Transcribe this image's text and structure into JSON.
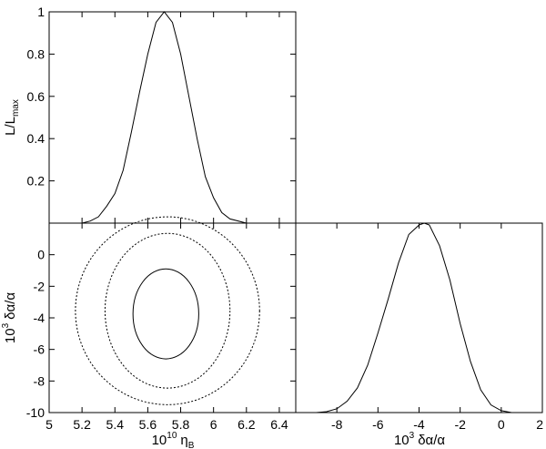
{
  "chart_data": [
    {
      "panel": "top-left",
      "type": "line",
      "title": "",
      "xlabel": "",
      "ylabel": "L/Lmax",
      "ylabel_main": "L/L",
      "ylabel_sub": "max",
      "xlim": [
        5.0,
        6.5
      ],
      "ylim": [
        0.0,
        1.0
      ],
      "yticks": [
        0.2,
        0.4,
        0.6,
        0.8,
        1.0
      ],
      "ytick_labels": [
        "0.2",
        "0.4",
        "0.6",
        "0.8",
        "1"
      ],
      "series": [
        {
          "x": [
            5.0,
            5.1,
            5.2,
            5.25,
            5.3,
            5.35,
            5.4,
            5.45,
            5.5,
            5.55,
            5.6,
            5.65,
            5.7,
            5.75,
            5.8,
            5.85,
            5.9,
            5.95,
            6.0,
            6.05,
            6.1,
            6.2,
            6.3,
            6.5
          ],
          "y": [
            0.0,
            0.0,
            0.0,
            0.01,
            0.03,
            0.08,
            0.14,
            0.25,
            0.43,
            0.62,
            0.8,
            0.95,
            1.0,
            0.95,
            0.8,
            0.6,
            0.4,
            0.22,
            0.12,
            0.05,
            0.02,
            0.0,
            0.0,
            0.0
          ]
        }
      ]
    },
    {
      "panel": "bottom-left",
      "type": "contour",
      "title": "",
      "xlabel": "10^10 ηB",
      "xlabel_prefix": "10",
      "xlabel_prefix_sup": "10",
      "xlabel_main": "η",
      "xlabel_sub": "B",
      "ylabel": "10^3 δα/α",
      "ylabel_prefix": "10",
      "ylabel_prefix_sup": "3",
      "ylabel_main": "δα/α",
      "xlim": [
        5.0,
        6.5
      ],
      "ylim": [
        -10.0,
        2.0
      ],
      "xticks": [
        5.0,
        5.2,
        5.4,
        5.6,
        5.8,
        6.0,
        6.2,
        6.4
      ],
      "xtick_labels": [
        "5",
        "5.2",
        "5.4",
        "5.6",
        "5.8",
        "6",
        "6.2",
        "6.4"
      ],
      "yticks": [
        -10,
        -8,
        -6,
        -4,
        -2,
        0
      ],
      "ytick_labels": [
        "-10",
        "-8",
        "-6",
        "-4",
        "-2",
        "0"
      ],
      "contours": [
        {
          "level": "1-sigma",
          "style": "solid",
          "center": [
            5.71,
            -3.75
          ],
          "rx": 0.2,
          "ry": 2.85
        },
        {
          "level": "2-sigma",
          "style": "dashed",
          "center": [
            5.72,
            -3.55
          ],
          "rx": 0.38,
          "ry": 4.9
        },
        {
          "level": "3-sigma",
          "style": "dashed",
          "center": [
            5.72,
            -3.55
          ],
          "rx": 0.56,
          "ry": 5.95
        }
      ]
    },
    {
      "panel": "bottom-right",
      "type": "line",
      "title": "",
      "xlabel": "10^3 δα/α",
      "xlabel_prefix": "10",
      "xlabel_prefix_sup": "3",
      "xlabel_main": "δα/α",
      "ylabel": "",
      "xlim": [
        -10.0,
        2.0
      ],
      "ylim": [
        0.0,
        1.0
      ],
      "xticks": [
        -8,
        -6,
        -4,
        -2,
        0,
        2
      ],
      "xtick_labels": [
        "-8",
        "-6",
        "-4",
        "-2",
        "0",
        "2"
      ],
      "series": [
        {
          "x": [
            -10,
            -9,
            -8.5,
            -8,
            -7.5,
            -7,
            -6.5,
            -6,
            -5.5,
            -5,
            -4.5,
            -4,
            -3.75,
            -3.5,
            -3,
            -2.5,
            -2,
            -1.5,
            -1,
            -0.5,
            0,
            0.5,
            1,
            2
          ],
          "y": [
            0.0,
            0.0,
            0.005,
            0.02,
            0.06,
            0.13,
            0.25,
            0.42,
            0.6,
            0.79,
            0.94,
            0.99,
            1.0,
            0.99,
            0.88,
            0.7,
            0.47,
            0.27,
            0.12,
            0.04,
            0.01,
            0.0,
            0.0,
            0.0
          ]
        }
      ]
    }
  ]
}
